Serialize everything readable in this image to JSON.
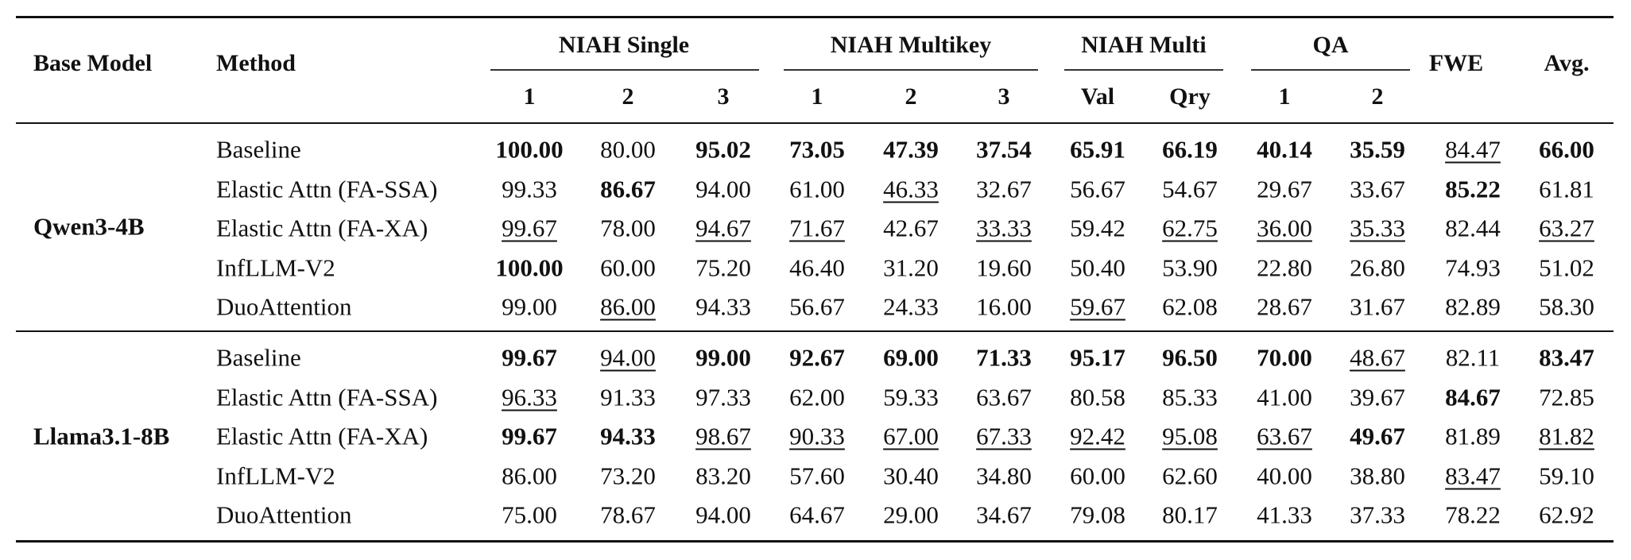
{
  "headers": {
    "base_model": "Base Model",
    "method": "Method",
    "groups": [
      "NIAH Single",
      "NIAH Multikey",
      "NIAH Multi",
      "QA"
    ],
    "sub": [
      "1",
      "2",
      "3",
      "1",
      "2",
      "3",
      "Val",
      "Qry",
      "1",
      "2"
    ],
    "fwe": "FWE",
    "avg": "Avg."
  },
  "sections": [
    {
      "model": "Qwen3-4B",
      "rows": [
        {
          "method": "Baseline",
          "values": [
            "100.00",
            "80.00",
            "95.02",
            "73.05",
            "47.39",
            "37.54",
            "65.91",
            "66.19",
            "40.14",
            "35.59",
            "84.47",
            "66.00"
          ],
          "styles": [
            "b",
            "",
            "b",
            "b",
            "b",
            "b",
            "b",
            "b",
            "b",
            "b",
            "u",
            "b"
          ]
        },
        {
          "method": "Elastic Attn (FA-SSA)",
          "values": [
            "99.33",
            "86.67",
            "94.00",
            "61.00",
            "46.33",
            "32.67",
            "56.67",
            "54.67",
            "29.67",
            "33.67",
            "85.22",
            "61.81"
          ],
          "styles": [
            "",
            "b",
            "",
            "",
            "u",
            "",
            "",
            "",
            "",
            "",
            "b",
            ""
          ]
        },
        {
          "method": "Elastic Attn (FA-XA)",
          "values": [
            "99.67",
            "78.00",
            "94.67",
            "71.67",
            "42.67",
            "33.33",
            "59.42",
            "62.75",
            "36.00",
            "35.33",
            "82.44",
            "63.27"
          ],
          "styles": [
            "u",
            "",
            "u",
            "u",
            "",
            "u",
            "",
            "u",
            "u",
            "u",
            "",
            "u"
          ]
        },
        {
          "method": "InfLLM-V2",
          "values": [
            "100.00",
            "60.00",
            "75.20",
            "46.40",
            "31.20",
            "19.60",
            "50.40",
            "53.90",
            "22.80",
            "26.80",
            "74.93",
            "51.02"
          ],
          "styles": [
            "b",
            "",
            "",
            "",
            "",
            "",
            "",
            "",
            "",
            "",
            "",
            ""
          ]
        },
        {
          "method": "DuoAttention",
          "values": [
            "99.00",
            "86.00",
            "94.33",
            "56.67",
            "24.33",
            "16.00",
            "59.67",
            "62.08",
            "28.67",
            "31.67",
            "82.89",
            "58.30"
          ],
          "styles": [
            "",
            "u",
            "",
            "",
            "",
            "",
            "u",
            "",
            "",
            "",
            "",
            ""
          ]
        }
      ]
    },
    {
      "model": "Llama3.1-8B",
      "rows": [
        {
          "method": "Baseline",
          "values": [
            "99.67",
            "94.00",
            "99.00",
            "92.67",
            "69.00",
            "71.33",
            "95.17",
            "96.50",
            "70.00",
            "48.67",
            "82.11",
            "83.47"
          ],
          "styles": [
            "b",
            "u",
            "b",
            "b",
            "b",
            "b",
            "b",
            "b",
            "b",
            "u",
            "",
            "b"
          ]
        },
        {
          "method": "Elastic Attn (FA-SSA)",
          "values": [
            "96.33",
            "91.33",
            "97.33",
            "62.00",
            "59.33",
            "63.67",
            "80.58",
            "85.33",
            "41.00",
            "39.67",
            "84.67",
            "72.85"
          ],
          "styles": [
            "u",
            "",
            "",
            "",
            "",
            "",
            "",
            "",
            "",
            "",
            "b",
            ""
          ]
        },
        {
          "method": "Elastic Attn (FA-XA)",
          "values": [
            "99.67",
            "94.33",
            "98.67",
            "90.33",
            "67.00",
            "67.33",
            "92.42",
            "95.08",
            "63.67",
            "49.67",
            "81.89",
            "81.82"
          ],
          "styles": [
            "b",
            "b",
            "u",
            "u",
            "u",
            "u",
            "u",
            "u",
            "u",
            "b",
            "",
            "u"
          ]
        },
        {
          "method": "InfLLM-V2",
          "values": [
            "86.00",
            "73.20",
            "83.20",
            "57.60",
            "30.40",
            "34.80",
            "60.00",
            "62.60",
            "40.00",
            "38.80",
            "83.47",
            "59.10"
          ],
          "styles": [
            "",
            "",
            "",
            "",
            "",
            "",
            "",
            "",
            "",
            "",
            "u",
            ""
          ]
        },
        {
          "method": "DuoAttention",
          "values": [
            "75.00",
            "78.67",
            "94.00",
            "64.67",
            "29.00",
            "34.67",
            "79.08",
            "80.17",
            "41.33",
            "37.33",
            "78.22",
            "62.92"
          ],
          "styles": [
            "",
            "",
            "",
            "",
            "",
            "",
            "",
            "",
            "",
            "",
            "",
            ""
          ]
        }
      ]
    }
  ]
}
